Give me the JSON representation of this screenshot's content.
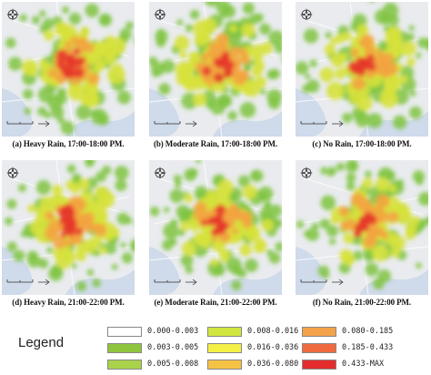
{
  "panels": [
    {
      "caption": "(a) Heavy Rain, 17:00-18:00 PM."
    },
    {
      "caption": "(b) Moderate Rain, 17:00-18:00 PM."
    },
    {
      "caption": "(c) No Rain, 17:00-18:00 PM."
    },
    {
      "caption": "(d) Heavy Rain, 21:00-22:00 PM."
    },
    {
      "caption": "(e) Moderate Rain, 21:00-22:00 PM."
    },
    {
      "caption": "(f) No Rain, 21:00-22:00 PM."
    }
  ],
  "legend": {
    "title": "Legend",
    "items": [
      {
        "range": "0.000-0.003",
        "color": "#ffffff"
      },
      {
        "range": "0.003-0.005",
        "color": "#8fc43f"
      },
      {
        "range": "0.005-0.008",
        "color": "#a9d34a"
      },
      {
        "range": "0.008-0.016",
        "color": "#d2e63f"
      },
      {
        "range": "0.016-0.036",
        "color": "#f4f046"
      },
      {
        "range": "0.036-0.080",
        "color": "#f6c245"
      },
      {
        "range": "0.080-0.185",
        "color": "#f4a24a"
      },
      {
        "range": "0.185-0.433",
        "color": "#ef6a3f"
      },
      {
        "range": "0.433-MAX",
        "color": "#e52d2d"
      }
    ]
  },
  "colors": {
    "map_bg": "#e9ebee",
    "water": "#c8d6e8"
  }
}
